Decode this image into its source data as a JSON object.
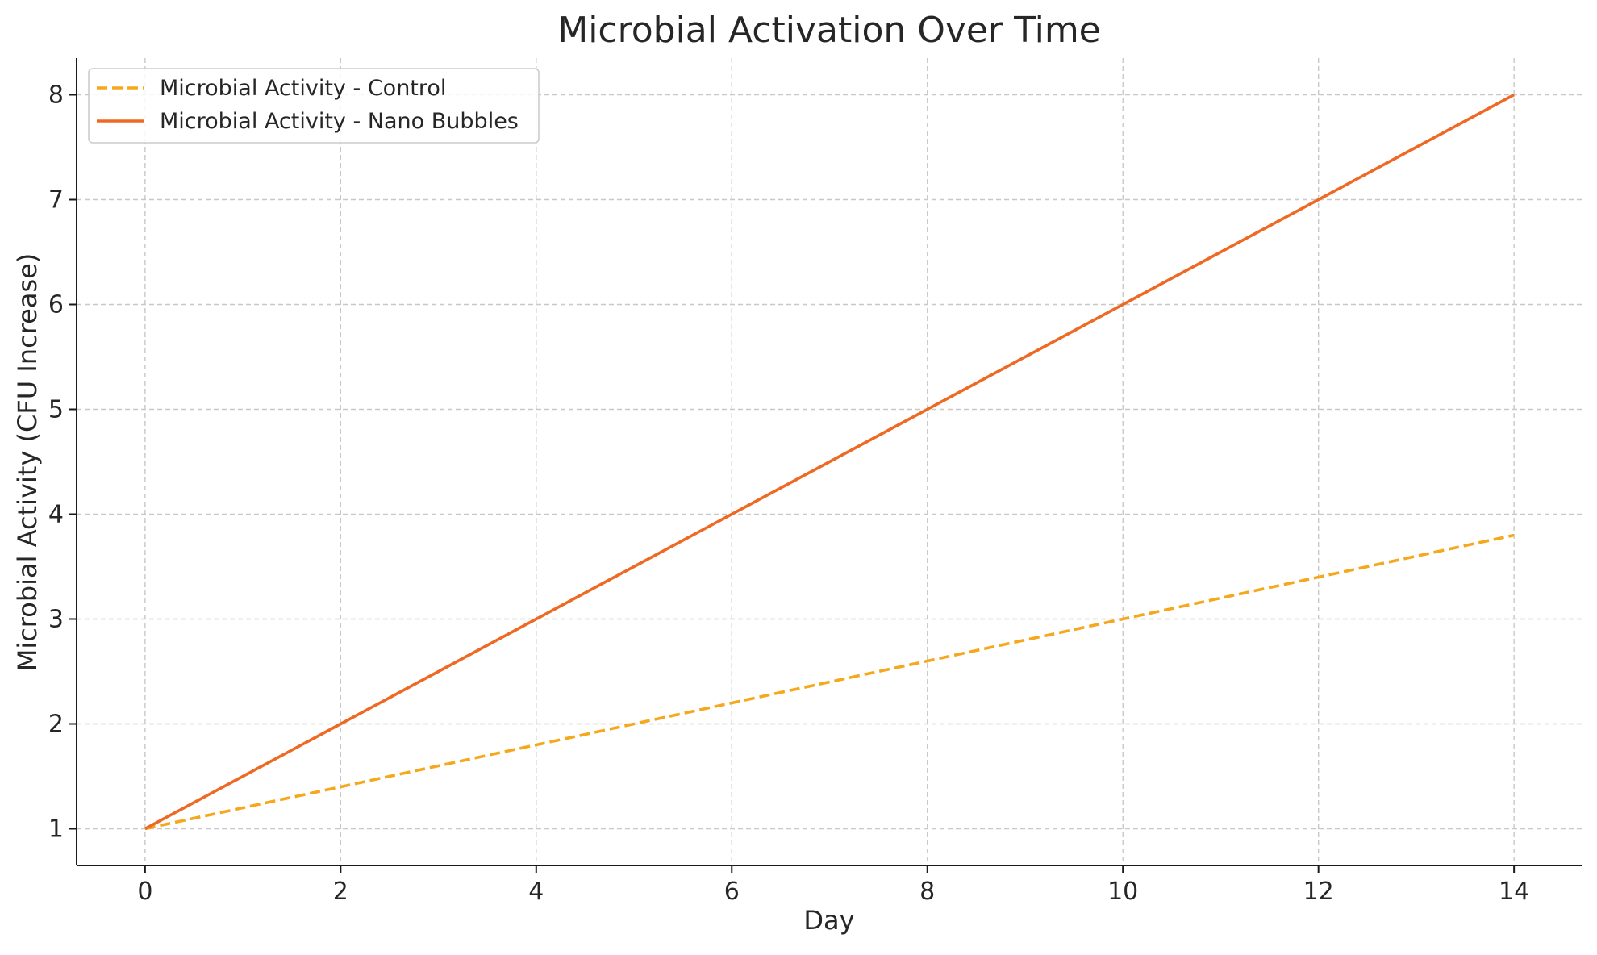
{
  "chart_data": {
    "type": "line",
    "title": "Microbial Activation Over Time",
    "xlabel": "Day",
    "ylabel": "Microbial Activity (CFU Increase)",
    "x": [
      0,
      1,
      2,
      3,
      4,
      5,
      6,
      7,
      8,
      9,
      10,
      11,
      12,
      13,
      14
    ],
    "xlim": [
      -0.7,
      14.7
    ],
    "ylim": [
      0.65,
      8.35
    ],
    "xticks": [
      0,
      2,
      4,
      6,
      8,
      10,
      12,
      14
    ],
    "yticks": [
      1,
      2,
      3,
      4,
      5,
      6,
      7,
      8
    ],
    "grid": true,
    "legend_position": "top-left",
    "series": [
      {
        "name": "Microbial Activity - Control",
        "values": [
          1.0,
          1.2,
          1.4,
          1.6,
          1.8,
          2.0,
          2.2,
          2.4,
          2.6,
          2.8,
          3.0,
          3.2,
          3.4,
          3.6,
          3.8
        ],
        "color": "#F5A81C",
        "style": "dashed"
      },
      {
        "name": "Microbial Activity - Nano Bubbles",
        "values": [
          1.0,
          1.5,
          2.0,
          2.5,
          3.0,
          3.5,
          4.0,
          4.5,
          5.0,
          5.5,
          6.0,
          6.5,
          7.0,
          7.5,
          8.0
        ],
        "color": "#EE6A24",
        "style": "solid"
      }
    ]
  }
}
